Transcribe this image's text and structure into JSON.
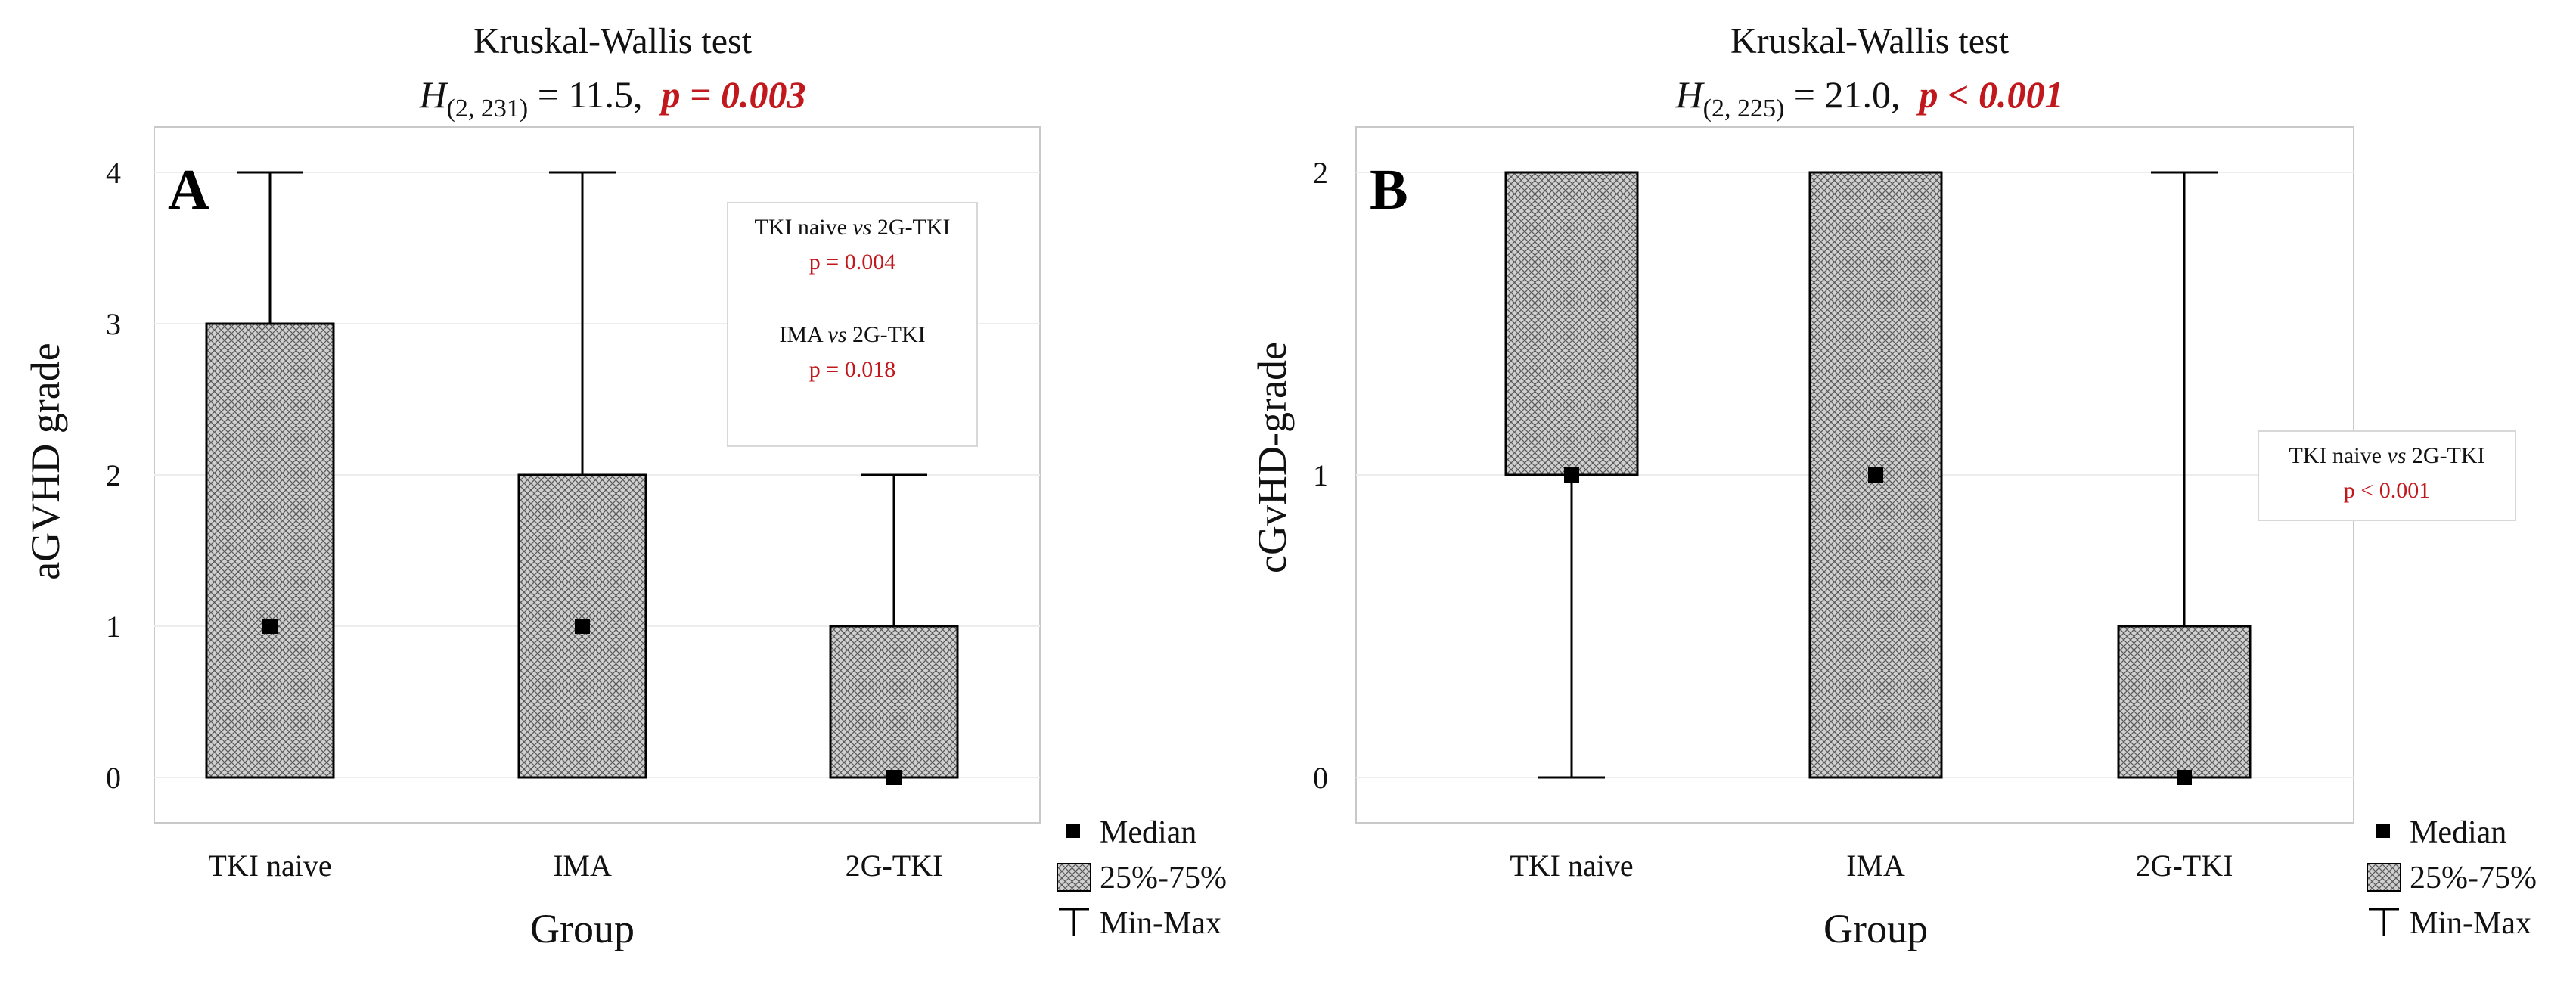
{
  "chart_data": [
    {
      "type": "boxplot",
      "panel_letter": "A",
      "title": "Kruskal-Wallis test",
      "stat": {
        "symbol": "H",
        "subscript": "(2, 231)",
        "value_text": " = 11.5,",
        "p_text": "p = 0.003"
      },
      "xlabel": "Group",
      "ylabel": "aGVHD grade",
      "ylim": [
        -0.3,
        4.3
      ],
      "yticks": [
        0,
        1,
        2,
        3,
        4
      ],
      "categories": [
        "TKI naive",
        "IMA",
        "2G-TKI"
      ],
      "series": [
        {
          "category": "TKI naive",
          "min": 0,
          "q1": 0,
          "median": 1,
          "q3": 3,
          "max": 4
        },
        {
          "category": "IMA",
          "min": 0,
          "q1": 0,
          "median": 1,
          "q3": 2,
          "max": 4
        },
        {
          "category": "2G-TKI",
          "min": 0,
          "q1": 0,
          "median": 0,
          "q3": 1,
          "max": 2
        }
      ],
      "annotation": [
        {
          "label_pre": "TKI naive ",
          "label_vs": "vs",
          "label_post": " 2G-TKI",
          "p_text": "p = 0.004"
        },
        {
          "label_pre": "IMA ",
          "label_vs": "vs",
          "label_post": " 2G-TKI",
          "p_text": "p = 0.018"
        }
      ],
      "legend": {
        "median": "Median",
        "box": "25%-75%",
        "whisker": "Min-Max"
      },
      "grid": true,
      "legend_position": "bottom-right"
    },
    {
      "type": "boxplot",
      "panel_letter": "B",
      "title": "Kruskal-Wallis test",
      "stat": {
        "symbol": "H",
        "subscript": "(2, 225)",
        "value_text": " = 21.0,",
        "p_text": "p < 0.001"
      },
      "xlabel": "Group",
      "ylabel": "cGvHD-grade",
      "ylim": [
        -0.15,
        2.15
      ],
      "yticks": [
        0,
        1,
        2
      ],
      "categories": [
        "TKI naive",
        "IMA",
        "2G-TKI"
      ],
      "series": [
        {
          "category": "TKI naive",
          "min": 0,
          "q1": 1,
          "median": 1,
          "q3": 2,
          "max": 2
        },
        {
          "category": "IMA",
          "min": 0,
          "q1": 0,
          "median": 1,
          "q3": 2,
          "max": 2
        },
        {
          "category": "2G-TKI",
          "min": 0,
          "q1": 0,
          "median": 0,
          "q3": 0.5,
          "max": 2
        }
      ],
      "annotation": [
        {
          "label_pre": "TKI naive ",
          "label_vs": "vs",
          "label_post": " 2G-TKI",
          "p_text": "p < 0.001"
        }
      ],
      "legend": {
        "median": "Median",
        "box": "25%-75%",
        "whisker": "Min-Max"
      },
      "grid": true,
      "legend_position": "bottom-right"
    }
  ]
}
